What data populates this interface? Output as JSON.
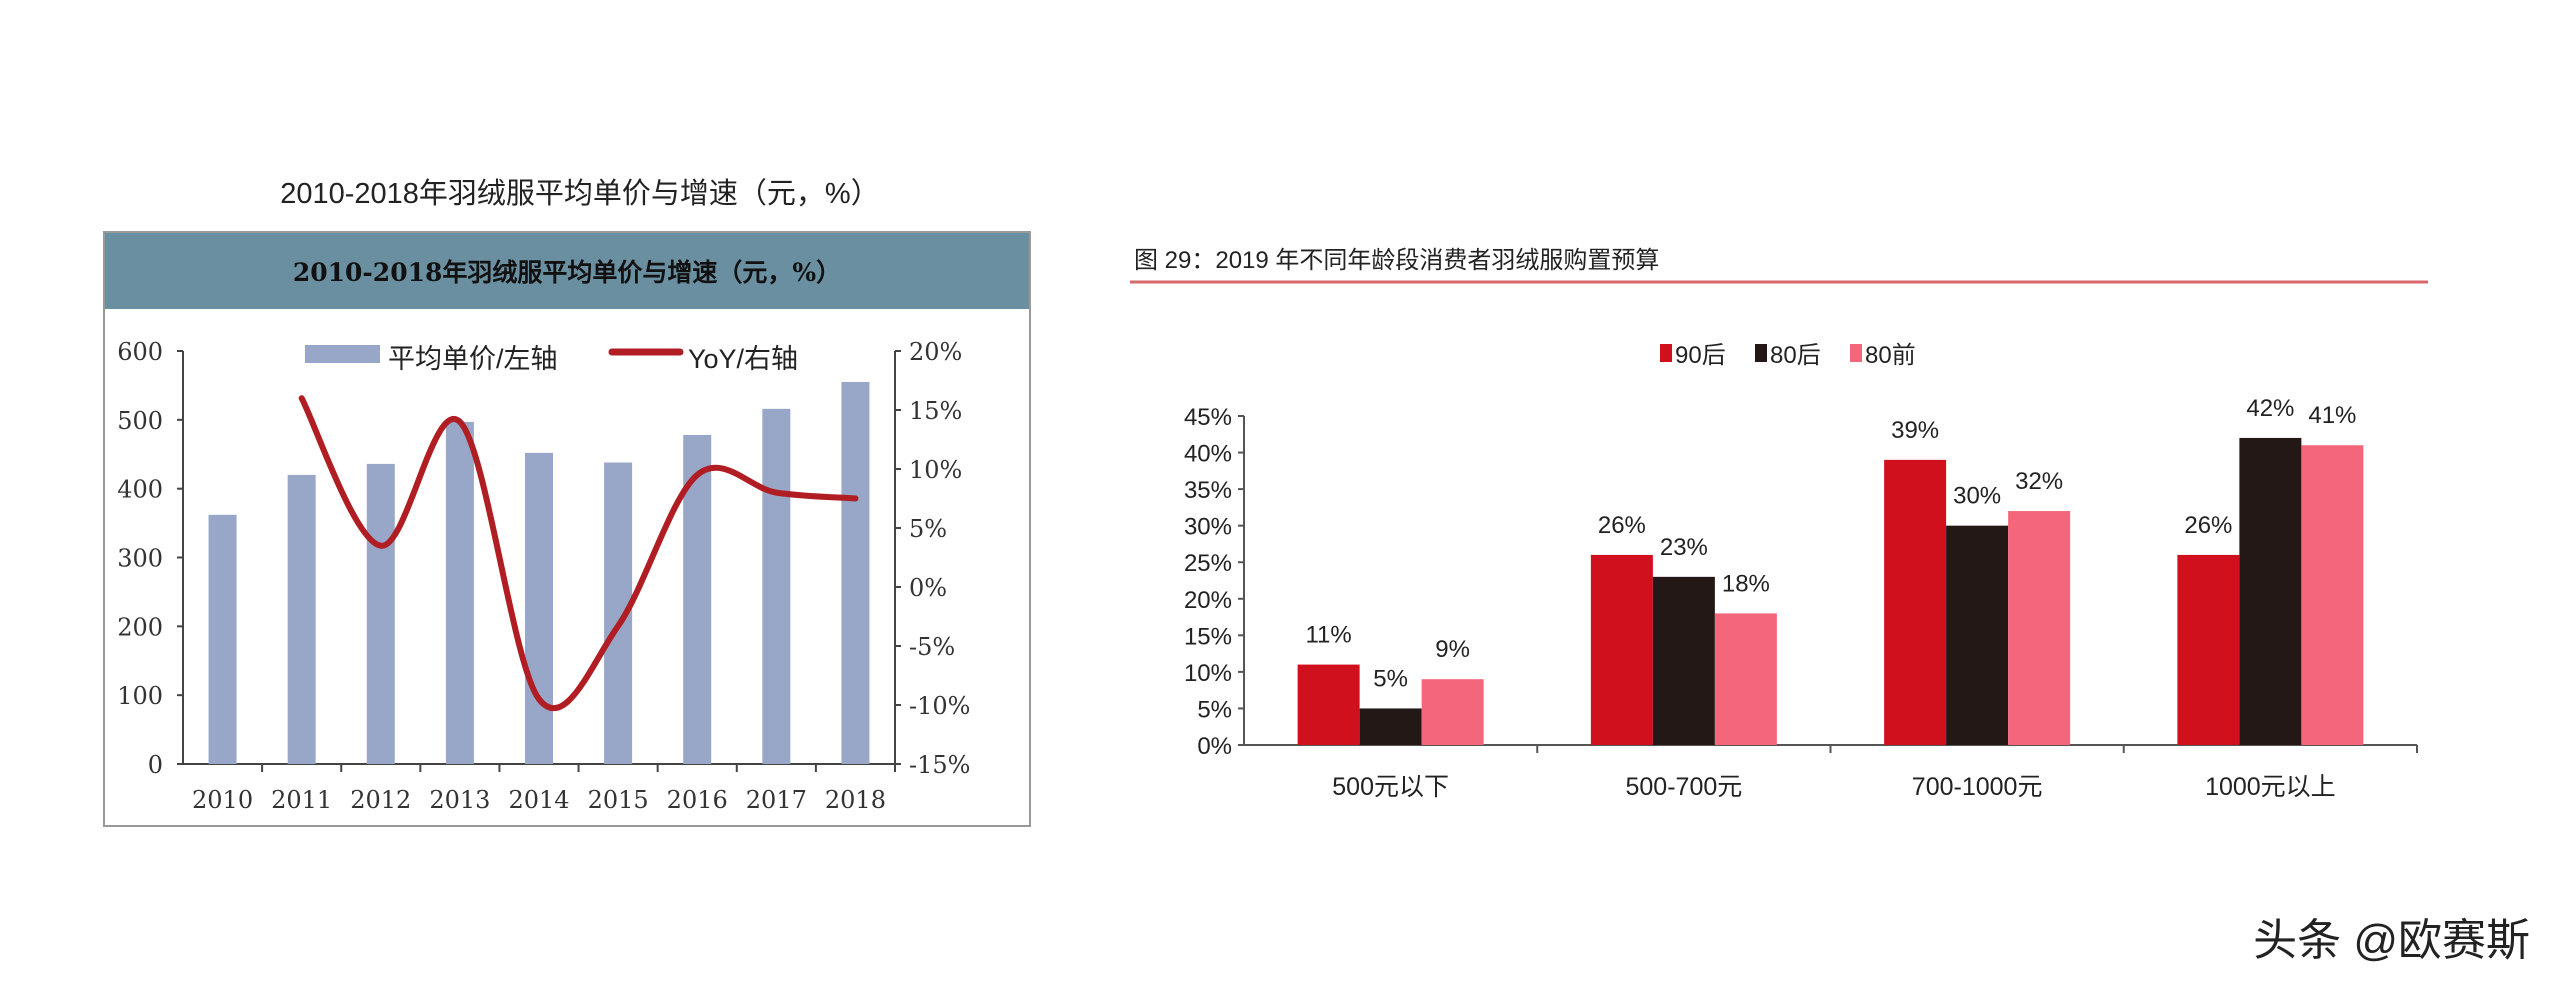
{
  "page_title": "2010-2018年羽绒服平均单价与增速（元，%）",
  "watermark": "头条 @欧赛斯",
  "chart_data": [
    {
      "type": "bar+line",
      "title": "2010-2018年羽绒服平均单价与增速（元，%）",
      "categories": [
        "2010",
        "2011",
        "2012",
        "2013",
        "2014",
        "2015",
        "2016",
        "2017",
        "2018"
      ],
      "series": [
        {
          "name": "平均单价/左轴",
          "type": "bar",
          "axis": "left",
          "color": "#98a6c8",
          "values": [
            362,
            420,
            436,
            497,
            452,
            438,
            478,
            516,
            555
          ]
        },
        {
          "name": "YoY/右轴",
          "type": "line",
          "axis": "right",
          "color": "#b01e24",
          "values": [
            null,
            16,
            3.5,
            14,
            -9.5,
            -3.3,
            9.5,
            8,
            7.5
          ]
        }
      ],
      "ylim_left": [
        0,
        600
      ],
      "yticks_left": [
        "0",
        "100",
        "200",
        "300",
        "400",
        "500",
        "600"
      ],
      "ylim_right": [
        -15,
        20
      ],
      "yticks_right": [
        "-15%",
        "-10%",
        "-5%",
        "0%",
        "5%",
        "10%",
        "15%",
        "20%"
      ],
      "header_color": "#6a8fa0",
      "legend": "top",
      "grid": false
    },
    {
      "type": "bar",
      "title": "图 29：2019 年不同年龄段消费者羽绒服购置预算",
      "categories": [
        "500元以下",
        "500-700元",
        "700-1000元",
        "1000元以上"
      ],
      "series": [
        {
          "name": "90后",
          "color": "#d0101c",
          "values": [
            11,
            26,
            39,
            26
          ]
        },
        {
          "name": "80后",
          "color": "#231816",
          "values": [
            5,
            23,
            30,
            42
          ]
        },
        {
          "name": "80前",
          "color": "#f4677a",
          "values": [
            9,
            18,
            32,
            41
          ]
        }
      ],
      "ylim": [
        0,
        45
      ],
      "yticks": [
        "0%",
        "5%",
        "10%",
        "15%",
        "20%",
        "25%",
        "30%",
        "35%",
        "40%",
        "45%"
      ],
      "legend": "top",
      "grid": false,
      "title_rule_color": "#d9686e"
    }
  ]
}
